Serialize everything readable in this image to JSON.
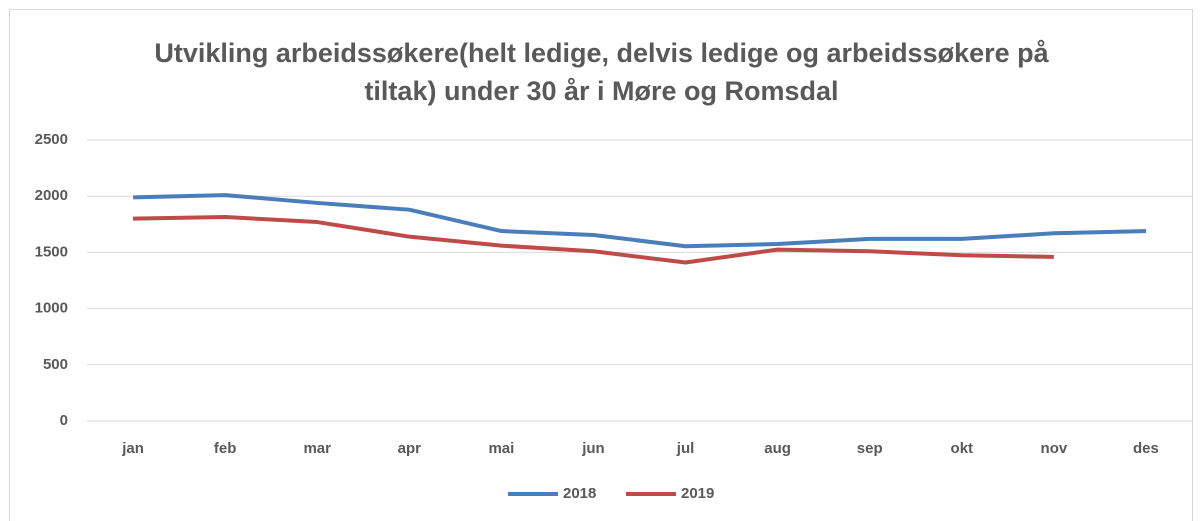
{
  "chart_data": {
    "type": "line",
    "title": "Utvikling arbeidssøkere(helt ledige, delvis ledige og arbeidssøkere på tiltak) under 30 år i Møre og Romsdal",
    "categories": [
      "jan",
      "feb",
      "mar",
      "apr",
      "mai",
      "jun",
      "jul",
      "aug",
      "sep",
      "okt",
      "nov",
      "des"
    ],
    "series": [
      {
        "name": "2018",
        "color": "#4a7ebb",
        "values": [
          1990,
          2010,
          1940,
          1880,
          1690,
          1655,
          1555,
          1575,
          1620,
          1620,
          1670,
          1690
        ]
      },
      {
        "name": "2019",
        "color": "#be4b48",
        "values": [
          1800,
          1815,
          1770,
          1640,
          1560,
          1510,
          1410,
          1525,
          1510,
          1475,
          1460,
          null
        ]
      }
    ],
    "ylim": [
      0,
      2500
    ],
    "yticks": [
      0,
      500,
      1000,
      1500,
      2000,
      2500
    ],
    "grid": true,
    "legend": "bottom"
  }
}
